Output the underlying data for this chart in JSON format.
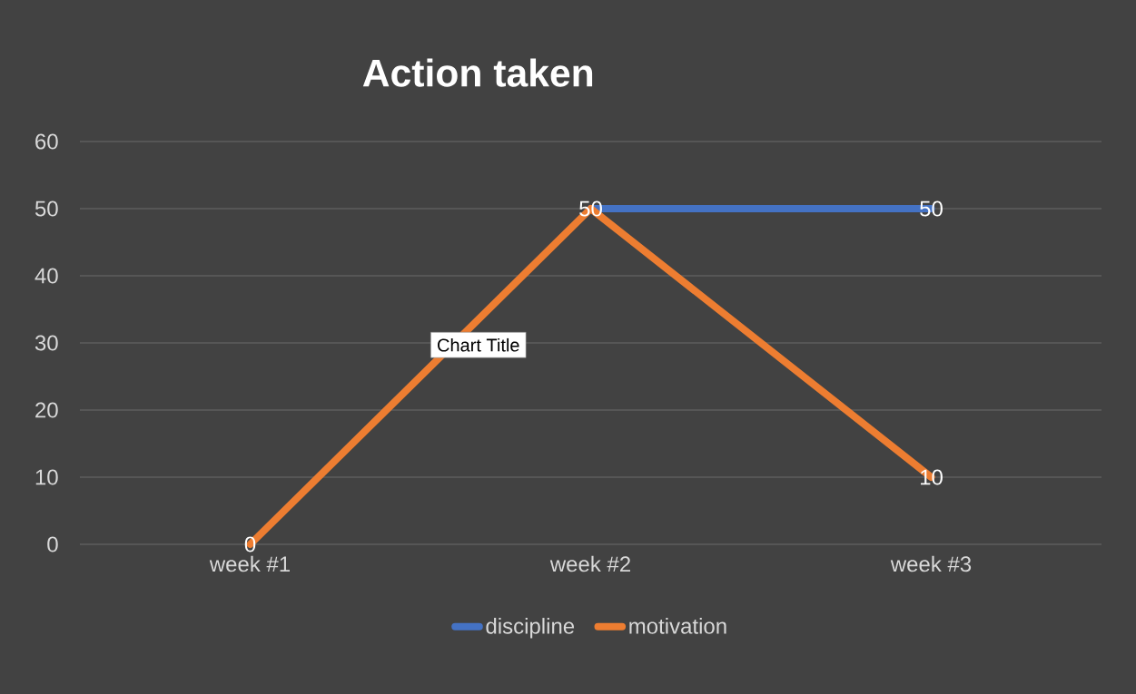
{
  "chart_data": {
    "type": "line",
    "title": "Action taken",
    "categories": [
      "week #1",
      "week #2",
      "week #3"
    ],
    "series": [
      {
        "name": "discipline",
        "color": "#4472c4",
        "values": [
          null,
          50,
          50
        ],
        "value_labels": [
          null,
          null,
          "50"
        ]
      },
      {
        "name": "motivation",
        "color": "#ed7d31",
        "values": [
          0,
          50,
          10
        ],
        "value_labels": [
          "0",
          "50",
          "10"
        ]
      }
    ],
    "ylim": [
      0,
      60
    ],
    "yticks": [
      0,
      10,
      20,
      30,
      40,
      50,
      60
    ],
    "grid": "y",
    "legend": "bottom",
    "marker": "none",
    "line_style": "solid",
    "annotations": [
      "Chart Title"
    ]
  }
}
